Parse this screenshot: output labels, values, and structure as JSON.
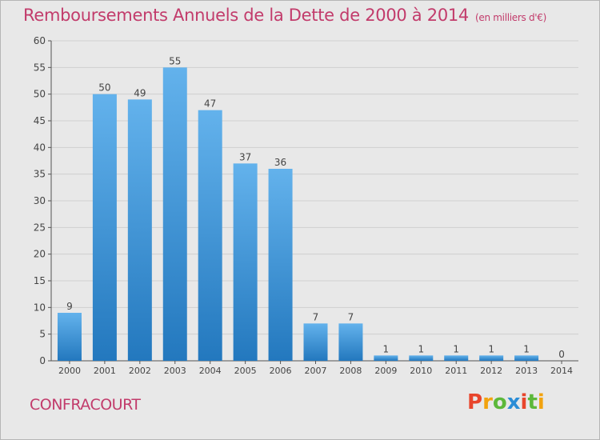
{
  "header": {
    "title": "Remboursements Annuels de la Dette de 2000 à 2014",
    "unit": "(en milliers d'€)"
  },
  "footer": {
    "commune": "CONFRACOURT",
    "logo": "Proxiti"
  },
  "colors": {
    "bar_light": "#63b2ec",
    "bar_dark": "#2378be",
    "title": "#c23b6b",
    "logo_letters": [
      "#e8452c",
      "#f2a30f",
      "#5cb83a",
      "#2b8dd6",
      "#e8452c",
      "#5cb83a",
      "#f2a30f"
    ]
  },
  "chart_data": {
    "type": "bar",
    "categories": [
      "2000",
      "2001",
      "2002",
      "2003",
      "2004",
      "2005",
      "2006",
      "2007",
      "2008",
      "2009",
      "2010",
      "2011",
      "2012",
      "2013",
      "2014"
    ],
    "values": [
      9,
      50,
      49,
      55,
      47,
      37,
      36,
      7,
      7,
      1,
      1,
      1,
      1,
      1,
      0
    ],
    "ylim": [
      0,
      60
    ],
    "yticks": [
      0,
      5,
      10,
      15,
      20,
      25,
      30,
      35,
      40,
      45,
      50,
      55,
      60
    ],
    "grid": true,
    "legend": "none"
  }
}
